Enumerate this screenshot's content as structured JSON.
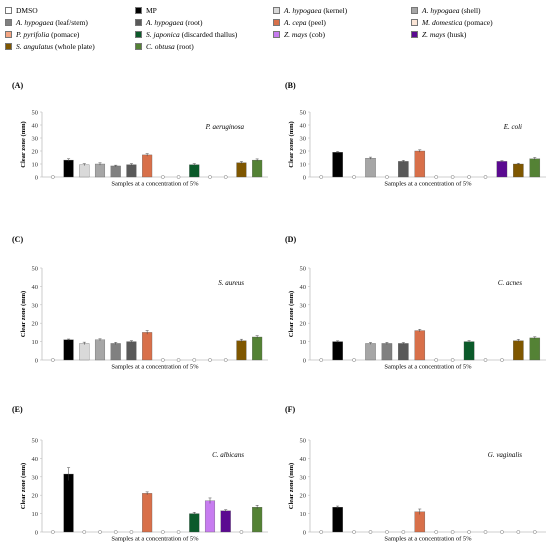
{
  "legend": [
    {
      "label": "DMSO",
      "species": "",
      "color": "#ffffff"
    },
    {
      "label": "MP",
      "species": "",
      "color": "#000000"
    },
    {
      "label": " (kernel)",
      "species": "A. hypogaea",
      "color": "#d9d9d9"
    },
    {
      "label": " (shell)",
      "species": "A. hypogaea",
      "color": "#a6a6a6"
    },
    {
      "label": " (leaf/stem)",
      "species": "A. hypogaea",
      "color": "#808080"
    },
    {
      "label": " (root)",
      "species": "A. hypogaea",
      "color": "#595959"
    },
    {
      "label": " (peel)",
      "species": "A. cepa",
      "color": "#d8704a"
    },
    {
      "label": " (pomace)",
      "species": "M. domestica",
      "color": "#fbe5d6"
    },
    {
      "label": " (pomace)",
      "species": "P. pyrifolia",
      "color": "#f4a582"
    },
    {
      "label": " (discarded thallus)",
      "species": "S. japonica",
      "color": "#0b5a2a"
    },
    {
      "label": " (cob)",
      "species": "Z. mays",
      "color": "#c77cf0"
    },
    {
      "label": " (husk)",
      "species": "Z. mays",
      "color": "#5b0a91"
    },
    {
      "label": " (whole plate)",
      "species": "S. angulatus",
      "color": "#7f5700"
    },
    {
      "label": " (root)",
      "species": "C. obtusa",
      "color": "#548235"
    }
  ],
  "chart_data": [
    {
      "type": "bar",
      "panel": "(A)",
      "organism": "P. aeruginosa",
      "ylabel": "Clear zone (mm)",
      "xlabel": "Samples at a concentration of 5%",
      "ylim": [
        0,
        50
      ],
      "yticks": [
        0,
        10,
        20,
        30,
        40,
        50
      ],
      "bar_colors": [
        "#ffffff",
        "#000000",
        "#d9d9d9",
        "#a6a6a6",
        "#808080",
        "#595959",
        "#d8704a",
        "#fbe5d6",
        "#f4a582",
        "#0b5a2a",
        "#c77cf0",
        "#5b0a91",
        "#7f5700",
        "#548235"
      ],
      "values": [
        0,
        13,
        9.5,
        10,
        8.5,
        9.5,
        17,
        0,
        0,
        9.5,
        0,
        0,
        11,
        13
      ],
      "errors": [
        0,
        1,
        0.8,
        0.9,
        0.6,
        0.8,
        1,
        0,
        0,
        0.8,
        0,
        0,
        0.9,
        0.9
      ]
    },
    {
      "type": "bar",
      "panel": "(B)",
      "organism": "E. coli",
      "ylabel": "Clear zone (mm)",
      "xlabel": "Samples at a concentration of 5%",
      "ylim": [
        0,
        50
      ],
      "yticks": [
        0,
        10,
        20,
        30,
        40,
        50
      ],
      "bar_colors": [
        "#ffffff",
        "#000000",
        "#d9d9d9",
        "#a6a6a6",
        "#808080",
        "#595959",
        "#d8704a",
        "#fbe5d6",
        "#f4a582",
        "#0b5a2a",
        "#c77cf0",
        "#5b0a91",
        "#7f5700",
        "#548235"
      ],
      "values": [
        0,
        19,
        0,
        14.5,
        0,
        12,
        20,
        0,
        0,
        0,
        0,
        12,
        10,
        14
      ],
      "errors": [
        0,
        0.6,
        0,
        0.8,
        0,
        0.8,
        0.9,
        0,
        0,
        0,
        0,
        0.5,
        0.6,
        1
      ]
    },
    {
      "type": "bar",
      "panel": "(C)",
      "organism": "S. aureus",
      "ylabel": "Clear zone (mm)",
      "xlabel": "Samples at a concentration of 5%",
      "ylim": [
        0,
        50
      ],
      "yticks": [
        0,
        10,
        20,
        30,
        40,
        50
      ],
      "bar_colors": [
        "#ffffff",
        "#000000",
        "#d9d9d9",
        "#a6a6a6",
        "#808080",
        "#595959",
        "#d8704a",
        "#fbe5d6",
        "#f4a582",
        "#0b5a2a",
        "#c77cf0",
        "#5b0a91",
        "#7f5700",
        "#548235"
      ],
      "values": [
        0,
        11,
        9,
        11,
        9,
        10,
        15,
        0,
        0,
        0,
        0,
        0,
        10.5,
        12.5
      ],
      "errors": [
        0,
        0.4,
        0.7,
        0.5,
        0.6,
        0.5,
        1,
        0,
        0,
        0,
        0,
        0,
        0.8,
        0.7
      ]
    },
    {
      "type": "bar",
      "panel": "(D)",
      "organism": "C. acnes",
      "ylabel": "Clear zone (mm)",
      "xlabel": "Samples at a concentration of 5%",
      "ylim": [
        0,
        50
      ],
      "yticks": [
        0,
        10,
        20,
        30,
        40,
        50
      ],
      "bar_colors": [
        "#ffffff",
        "#000000",
        "#d9d9d9",
        "#a6a6a6",
        "#808080",
        "#595959",
        "#d8704a",
        "#fbe5d6",
        "#f4a582",
        "#0b5a2a",
        "#c77cf0",
        "#5b0a91",
        "#7f5700",
        "#548235"
      ],
      "values": [
        0,
        10,
        0,
        9,
        9,
        9,
        16,
        0,
        0,
        10,
        0,
        0,
        10.5,
        12
      ],
      "errors": [
        0,
        0.4,
        0,
        0.5,
        0.6,
        0.5,
        0.7,
        0,
        0,
        0.5,
        0,
        0,
        0.7,
        0.6
      ]
    },
    {
      "type": "bar",
      "panel": "(E)",
      "organism": "C. albicans",
      "ylabel": "Clear zone (mm)",
      "xlabel": "Samples at a concentration of 5%",
      "ylim": [
        0,
        50
      ],
      "yticks": [
        0,
        10,
        20,
        30,
        40,
        50
      ],
      "bar_colors": [
        "#ffffff",
        "#000000",
        "#d9d9d9",
        "#a6a6a6",
        "#808080",
        "#595959",
        "#d8704a",
        "#fbe5d6",
        "#f4a582",
        "#0b5a2a",
        "#c77cf0",
        "#5b0a91",
        "#7f5700",
        "#548235"
      ],
      "values": [
        0,
        31.5,
        0,
        0,
        0,
        0,
        21,
        0,
        0,
        10,
        17,
        11.5,
        0,
        13.5
      ],
      "errors": [
        0,
        3.5,
        0,
        0,
        0,
        0,
        0.8,
        0,
        0,
        0.7,
        1.5,
        0.6,
        0,
        1
      ]
    },
    {
      "type": "bar",
      "panel": "(F)",
      "organism": "G. vaginalis",
      "ylabel": "Clear zone (mm)",
      "xlabel": "Samples at a concentration of 5%",
      "ylim": [
        0,
        50
      ],
      "yticks": [
        0,
        10,
        20,
        30,
        40,
        50
      ],
      "bar_colors": [
        "#ffffff",
        "#000000",
        "#d9d9d9",
        "#a6a6a6",
        "#808080",
        "#595959",
        "#d8704a",
        "#fbe5d6",
        "#f4a582",
        "#0b5a2a",
        "#c77cf0",
        "#5b0a91",
        "#7f5700",
        "#548235"
      ],
      "values": [
        0,
        13.5,
        0,
        0,
        0,
        0,
        11,
        0,
        0,
        0,
        0,
        0,
        0,
        0
      ],
      "errors": [
        0,
        0.6,
        0,
        0,
        0,
        0,
        1.5,
        0,
        0,
        0,
        0,
        0,
        0,
        0
      ]
    }
  ]
}
